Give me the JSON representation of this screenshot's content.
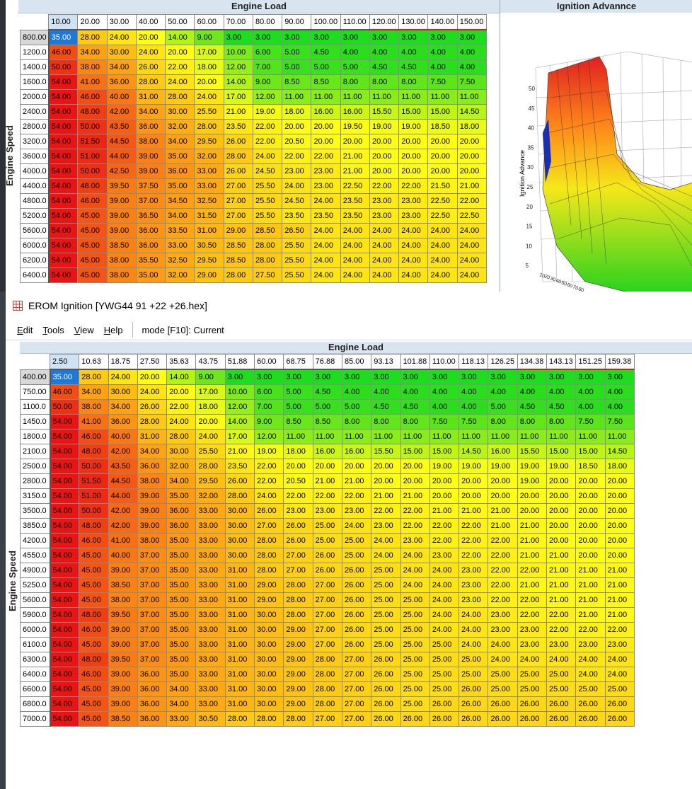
{
  "back": {
    "engine_load_label": "Engine Load",
    "engine_speed_label": "Engine Speed",
    "chart_title": "Ignition Advannce",
    "chart_axis_label": "Ignition Advance",
    "chart_ticks": [
      "50",
      "45",
      "40",
      "35",
      "30",
      "25",
      "20",
      "15",
      "10",
      "5"
    ],
    "col_headers": [
      "10.00",
      "20.00",
      "30.00",
      "40.00",
      "50.00",
      "60.00",
      "70.00",
      "80.00",
      "90.00",
      "100.00",
      "110.00",
      "120.00",
      "130.00",
      "140.00",
      "150.00"
    ],
    "row_headers": [
      "800.00",
      "1200.0",
      "1400.0",
      "1600.0",
      "2000.0",
      "2400.0",
      "2800.0",
      "3200.0",
      "3600.0",
      "4000.0",
      "4400.0",
      "4800.0",
      "5200.0",
      "5600.0",
      "6000.0",
      "6200.0",
      "6400.0"
    ],
    "values": [
      [
        "35.00",
        "28.00",
        "24.00",
        "20.00",
        "14.00",
        "9.00",
        "3.00",
        "3.00",
        "3.00",
        "3.00",
        "3.00",
        "3.00",
        "3.00",
        "3.00",
        "3.00"
      ],
      [
        "46.00",
        "34.00",
        "30.00",
        "24.00",
        "20.00",
        "17.00",
        "10.00",
        "6.00",
        "5.00",
        "4.50",
        "4.00",
        "4.00",
        "4.00",
        "4.00",
        "4.00"
      ],
      [
        "50.00",
        "38.00",
        "34.00",
        "26.00",
        "22.00",
        "18.00",
        "12.00",
        "7.00",
        "5.00",
        "5.00",
        "5.00",
        "4.50",
        "4.50",
        "4.00",
        "4.00"
      ],
      [
        "54.00",
        "41.00",
        "36.00",
        "28.00",
        "24.00",
        "20.00",
        "14.00",
        "9.00",
        "8.50",
        "8.50",
        "8.00",
        "8.00",
        "8.00",
        "7.50",
        "7.50"
      ],
      [
        "54.00",
        "46.00",
        "40.00",
        "31.00",
        "28.00",
        "24.00",
        "17.00",
        "12.00",
        "11.00",
        "11.00",
        "11.00",
        "11.00",
        "11.00",
        "11.00",
        "11.00"
      ],
      [
        "54.00",
        "48.00",
        "42.00",
        "34.00",
        "30.00",
        "25.50",
        "21.00",
        "19.00",
        "18.00",
        "16.00",
        "16.00",
        "15.50",
        "15.00",
        "15.00",
        "14.50"
      ],
      [
        "54.00",
        "50.00",
        "43.50",
        "36.00",
        "32.00",
        "28.00",
        "23.50",
        "22.00",
        "20.00",
        "20.00",
        "19.50",
        "19.00",
        "19.00",
        "18.50",
        "18.00"
      ],
      [
        "54.00",
        "51.50",
        "44.50",
        "38.00",
        "34.00",
        "29.50",
        "26.00",
        "22.00",
        "20.50",
        "20.00",
        "20.00",
        "20.00",
        "20.00",
        "20.00",
        "20.00"
      ],
      [
        "54.00",
        "51.00",
        "44.00",
        "39.00",
        "35.00",
        "32.00",
        "28.00",
        "24.00",
        "22.00",
        "22.00",
        "21.00",
        "20.00",
        "20.00",
        "20.00",
        "20.00"
      ],
      [
        "54.00",
        "50.00",
        "42.50",
        "39.00",
        "36.00",
        "33.00",
        "26.00",
        "24.50",
        "23.00",
        "23.00",
        "21.00",
        "20.00",
        "20.00",
        "20.00",
        "20.00"
      ],
      [
        "54.00",
        "48.00",
        "39.50",
        "37.50",
        "35.00",
        "33.00",
        "27.00",
        "25.50",
        "24.00",
        "23.00",
        "22.50",
        "22.00",
        "22.00",
        "21.50",
        "21.00"
      ],
      [
        "54.00",
        "46.00",
        "39.00",
        "37.00",
        "34.50",
        "32.50",
        "27.00",
        "25.50",
        "24.50",
        "24.00",
        "23.50",
        "23.00",
        "23.00",
        "22.50",
        "22.00"
      ],
      [
        "54.00",
        "45.00",
        "39.00",
        "36.50",
        "34.00",
        "31.50",
        "27.00",
        "25.50",
        "23.50",
        "23.50",
        "23.50",
        "23.00",
        "23.00",
        "22.50",
        "22.50"
      ],
      [
        "54.00",
        "45.00",
        "39.00",
        "36.00",
        "33.50",
        "31.00",
        "29.00",
        "28.50",
        "26.50",
        "24.00",
        "24.00",
        "24.00",
        "24.00",
        "24.00",
        "24.00"
      ],
      [
        "54.00",
        "45.00",
        "38.50",
        "36.00",
        "33.00",
        "30.50",
        "28.50",
        "28.00",
        "25.50",
        "24.00",
        "24.00",
        "24.00",
        "24.00",
        "24.00",
        "24.00"
      ],
      [
        "54.00",
        "45.00",
        "38.00",
        "35.50",
        "32.50",
        "29.50",
        "28.50",
        "28.00",
        "25.50",
        "24.00",
        "24.00",
        "24.00",
        "24.00",
        "24.00",
        "24.00"
      ],
      [
        "54.00",
        "45.00",
        "38.00",
        "35.00",
        "32.00",
        "29.00",
        "28.00",
        "27.50",
        "25.50",
        "24.00",
        "24.00",
        "24.00",
        "24.00",
        "24.00",
        "24.00"
      ]
    ]
  },
  "front": {
    "window_title": "EROM Ignition [YWG44 91 +22 +26.hex]",
    "menu": [
      {
        "underline": "E",
        "rest": "dit"
      },
      {
        "underline": "T",
        "rest": "ools"
      },
      {
        "underline": "V",
        "rest": "iew"
      },
      {
        "underline": "H",
        "rest": "elp"
      }
    ],
    "mode_text": "mode [F10]: Current",
    "engine_load_label": "Engine Load",
    "engine_speed_label": "Engine Speed",
    "col_headers": [
      "2.50",
      "10.63",
      "18.75",
      "27.50",
      "35.63",
      "43.75",
      "51.88",
      "60.00",
      "68.75",
      "76.88",
      "85.00",
      "93.13",
      "101.88",
      "110.00",
      "118.13",
      "126.25",
      "134.38",
      "143.13",
      "151.25",
      "159.38"
    ],
    "row_headers": [
      "400.00",
      "750.00",
      "1100.0",
      "1450.0",
      "1800.0",
      "2100.0",
      "2500.0",
      "2800.0",
      "3150.0",
      "3500.0",
      "3850.0",
      "4200.0",
      "4550.0",
      "4900.0",
      "5250.0",
      "5600.0",
      "5900.0",
      "6000.0",
      "6100.0",
      "6300.0",
      "6400.0",
      "6600.0",
      "6800.0",
      "7000.0"
    ],
    "values": [
      [
        "35.00",
        "28.00",
        "24.00",
        "20.00",
        "14.00",
        "9.00",
        "3.00",
        "3.00",
        "3.00",
        "3.00",
        "3.00",
        "3.00",
        "3.00",
        "3.00",
        "3.00",
        "3.00",
        "3.00",
        "3.00",
        "3.00",
        "3.00"
      ],
      [
        "46.00",
        "34.00",
        "30.00",
        "24.00",
        "20.00",
        "17.00",
        "10.00",
        "6.00",
        "5.00",
        "4.50",
        "4.00",
        "4.00",
        "4.00",
        "4.00",
        "4.00",
        "4.00",
        "4.00",
        "4.00",
        "4.00",
        "4.00"
      ],
      [
        "50.00",
        "38.00",
        "34.00",
        "26.00",
        "22.00",
        "18.00",
        "12.00",
        "7.00",
        "5.00",
        "5.00",
        "5.00",
        "4.50",
        "4.50",
        "4.00",
        "4.00",
        "5.00",
        "4.50",
        "4.50",
        "4.00",
        "4.00"
      ],
      [
        "54.00",
        "41.00",
        "36.00",
        "28.00",
        "24.00",
        "20.00",
        "14.00",
        "9.00",
        "8.50",
        "8.50",
        "8.00",
        "8.00",
        "8.00",
        "7.50",
        "7.50",
        "8.00",
        "8.00",
        "8.00",
        "7.50",
        "7.50"
      ],
      [
        "54.00",
        "46.00",
        "40.00",
        "31.00",
        "28.00",
        "24.00",
        "17.00",
        "12.00",
        "11.00",
        "11.00",
        "11.00",
        "11.00",
        "11.00",
        "11.00",
        "11.00",
        "11.00",
        "11.00",
        "11.00",
        "11.00",
        "11.00"
      ],
      [
        "54.00",
        "48.00",
        "42.00",
        "34.00",
        "30.00",
        "25.50",
        "21.00",
        "19.00",
        "18.00",
        "16.00",
        "16.00",
        "15.50",
        "15.00",
        "15.00",
        "14.50",
        "16.00",
        "15.50",
        "15.00",
        "15.00",
        "14.50"
      ],
      [
        "54.00",
        "50.00",
        "43.50",
        "36.00",
        "32.00",
        "28.00",
        "23.50",
        "22.00",
        "20.00",
        "20.00",
        "20.00",
        "20.00",
        "20.00",
        "19.00",
        "19.00",
        "19.00",
        "19.00",
        "19.00",
        "18.50",
        "18.00"
      ],
      [
        "54.00",
        "51.50",
        "44.50",
        "38.00",
        "34.00",
        "29.50",
        "26.00",
        "22.00",
        "20.50",
        "21.00",
        "21.00",
        "20.00",
        "20.00",
        "20.00",
        "20.00",
        "20.00",
        "19.00",
        "20.00",
        "20.00",
        "20.00"
      ],
      [
        "54.00",
        "51.00",
        "44.00",
        "39.00",
        "35.00",
        "32.00",
        "28.00",
        "24.00",
        "22.00",
        "22.00",
        "22.00",
        "21.00",
        "21.00",
        "20.00",
        "20.00",
        "20.00",
        "20.00",
        "20.00",
        "20.00",
        "20.00"
      ],
      [
        "54.00",
        "50.00",
        "42.00",
        "39.00",
        "36.00",
        "33.00",
        "30.00",
        "26.00",
        "23.00",
        "23.00",
        "23.00",
        "22.00",
        "22.00",
        "21.00",
        "21.00",
        "21.00",
        "20.00",
        "20.00",
        "20.00",
        "20.00"
      ],
      [
        "54.00",
        "48.00",
        "42.00",
        "39.00",
        "36.00",
        "33.00",
        "30.00",
        "27.00",
        "26.00",
        "25.00",
        "24.00",
        "23.00",
        "22.00",
        "22.00",
        "22.00",
        "21.00",
        "21.00",
        "20.00",
        "20.00",
        "20.00"
      ],
      [
        "54.00",
        "46.00",
        "41.00",
        "38.00",
        "35.00",
        "33.00",
        "30.00",
        "28.00",
        "26.00",
        "25.00",
        "25.00",
        "24.00",
        "23.00",
        "22.00",
        "22.00",
        "22.00",
        "21.00",
        "20.00",
        "20.00",
        "20.00"
      ],
      [
        "54.00",
        "45.00",
        "40.00",
        "37.00",
        "35.00",
        "33.00",
        "30.00",
        "28.00",
        "27.00",
        "26.00",
        "25.00",
        "24.00",
        "24.00",
        "23.00",
        "22.00",
        "22.00",
        "21.00",
        "21.00",
        "20.00",
        "20.00"
      ],
      [
        "54.00",
        "45.00",
        "39.00",
        "37.00",
        "35.00",
        "33.00",
        "31.00",
        "28.00",
        "27.00",
        "26.00",
        "26.00",
        "25.00",
        "24.00",
        "24.00",
        "23.00",
        "22.00",
        "22.00",
        "21.00",
        "21.00",
        "21.00"
      ],
      [
        "54.00",
        "45.00",
        "38.50",
        "37.00",
        "35.00",
        "33.00",
        "31.00",
        "29.00",
        "28.00",
        "27.00",
        "26.00",
        "25.00",
        "24.00",
        "24.00",
        "23.00",
        "22.00",
        "21.00",
        "21.00",
        "21.00",
        "21.00"
      ],
      [
        "54.00",
        "45.00",
        "38.00",
        "37.00",
        "35.00",
        "33.00",
        "31.00",
        "29.00",
        "28.00",
        "27.00",
        "26.00",
        "25.00",
        "25.00",
        "24.00",
        "23.00",
        "22.00",
        "22.00",
        "21.00",
        "21.00",
        "21.00"
      ],
      [
        "54.00",
        "48.00",
        "39.50",
        "37.00",
        "35.00",
        "33.00",
        "31.00",
        "30.00",
        "28.00",
        "27.00",
        "26.00",
        "25.00",
        "25.00",
        "24.00",
        "24.00",
        "23.00",
        "22.00",
        "22.00",
        "21.00",
        "21.00"
      ],
      [
        "54.00",
        "46.00",
        "39.00",
        "37.00",
        "35.00",
        "33.00",
        "31.00",
        "30.00",
        "29.00",
        "27.00",
        "26.00",
        "25.00",
        "25.00",
        "24.00",
        "24.00",
        "23.00",
        "23.00",
        "22.00",
        "22.00",
        "22.00"
      ],
      [
        "54.00",
        "45.00",
        "39.00",
        "37.00",
        "35.00",
        "33.00",
        "31.00",
        "30.00",
        "29.00",
        "27.00",
        "26.00",
        "25.00",
        "25.00",
        "25.00",
        "24.00",
        "24.00",
        "23.00",
        "23.00",
        "23.00",
        "23.00"
      ],
      [
        "54.00",
        "48.00",
        "39.50",
        "37.00",
        "35.00",
        "33.00",
        "31.00",
        "30.00",
        "29.00",
        "28.00",
        "27.00",
        "26.00",
        "25.00",
        "25.00",
        "25.00",
        "24.00",
        "24.00",
        "24.00",
        "24.00",
        "24.00"
      ],
      [
        "54.00",
        "46.00",
        "39.00",
        "36.00",
        "35.00",
        "33.00",
        "31.00",
        "30.00",
        "29.00",
        "28.00",
        "27.00",
        "26.00",
        "25.00",
        "25.00",
        "25.00",
        "25.00",
        "25.00",
        "25.00",
        "24.00",
        "24.00"
      ],
      [
        "54.00",
        "45.00",
        "39.00",
        "36.00",
        "34.00",
        "33.00",
        "31.00",
        "30.00",
        "29.00",
        "28.00",
        "27.00",
        "26.00",
        "25.00",
        "25.00",
        "26.00",
        "25.00",
        "25.00",
        "25.00",
        "25.00",
        "25.00"
      ],
      [
        "54.00",
        "45.00",
        "39.00",
        "36.00",
        "34.00",
        "33.00",
        "31.00",
        "30.00",
        "29.00",
        "28.00",
        "27.00",
        "26.00",
        "25.00",
        "26.00",
        "26.00",
        "26.00",
        "26.00",
        "26.00",
        "26.00",
        "26.00"
      ],
      [
        "54.00",
        "45.00",
        "38.50",
        "36.00",
        "33.00",
        "30.50",
        "28.00",
        "28.00",
        "28.00",
        "27.00",
        "27.00",
        "26.00",
        "26.00",
        "26.00",
        "26.00",
        "26.00",
        "26.00",
        "26.00",
        "26.00",
        "26.00"
      ]
    ]
  }
}
